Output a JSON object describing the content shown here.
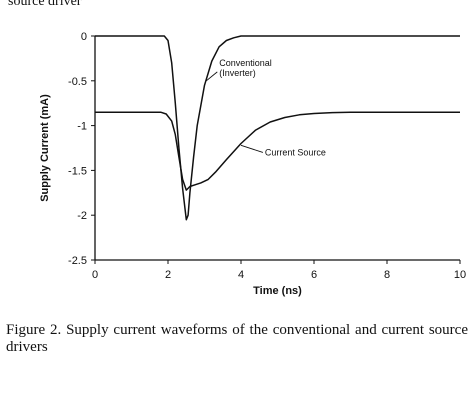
{
  "top_fragment": "source driver",
  "caption": "Figure 2. Supply current waveforms of the conventional and current source drivers",
  "chart_data": {
    "type": "line",
    "xlabel": "Time (ns)",
    "ylabel": "Supply Current (mA)",
    "xlim": [
      0,
      10
    ],
    "ylim": [
      -2.5,
      0
    ],
    "xticks": [
      0,
      2,
      4,
      6,
      8,
      10
    ],
    "yticks": [
      0,
      -0.5,
      -1,
      -1.5,
      -2,
      -2.5
    ],
    "ytick_labels": [
      "0",
      "-0.5",
      "-1",
      "-1.5",
      "-2",
      "-2.5"
    ],
    "grid": false,
    "series": [
      {
        "name": "Conventional (Inverter)",
        "x": [
          0,
          1.9,
          2.0,
          2.1,
          2.2,
          2.3,
          2.4,
          2.5,
          2.55,
          2.6,
          2.7,
          2.8,
          3.0,
          3.2,
          3.4,
          3.6,
          3.8,
          4.0,
          4.5,
          10
        ],
        "y": [
          0,
          0,
          -0.05,
          -0.3,
          -0.75,
          -1.25,
          -1.7,
          -2.05,
          -2.0,
          -1.75,
          -1.35,
          -1.0,
          -0.55,
          -0.28,
          -0.12,
          -0.05,
          -0.02,
          0,
          0,
          0
        ]
      },
      {
        "name": "Current Source",
        "x": [
          0,
          1.8,
          1.95,
          2.1,
          2.2,
          2.3,
          2.4,
          2.5,
          2.6,
          2.75,
          2.9,
          3.1,
          3.3,
          3.6,
          4.0,
          4.4,
          4.8,
          5.2,
          5.6,
          6.0,
          6.5,
          7.0,
          10
        ],
        "y": [
          -0.85,
          -0.85,
          -0.87,
          -0.95,
          -1.1,
          -1.35,
          -1.6,
          -1.72,
          -1.68,
          -1.66,
          -1.64,
          -1.6,
          -1.52,
          -1.38,
          -1.2,
          -1.05,
          -0.96,
          -0.91,
          -0.88,
          -0.865,
          -0.855,
          -0.85,
          -0.85
        ]
      }
    ],
    "annotations": [
      {
        "lines": [
          "Conventional",
          "(Inverter)"
        ],
        "target": [
          3.05,
          -0.5
        ],
        "anchor": [
          3.35,
          -0.4
        ]
      },
      {
        "lines": [
          "Current Source"
        ],
        "target": [
          4.0,
          -1.22
        ],
        "anchor": [
          4.6,
          -1.3
        ]
      }
    ]
  }
}
